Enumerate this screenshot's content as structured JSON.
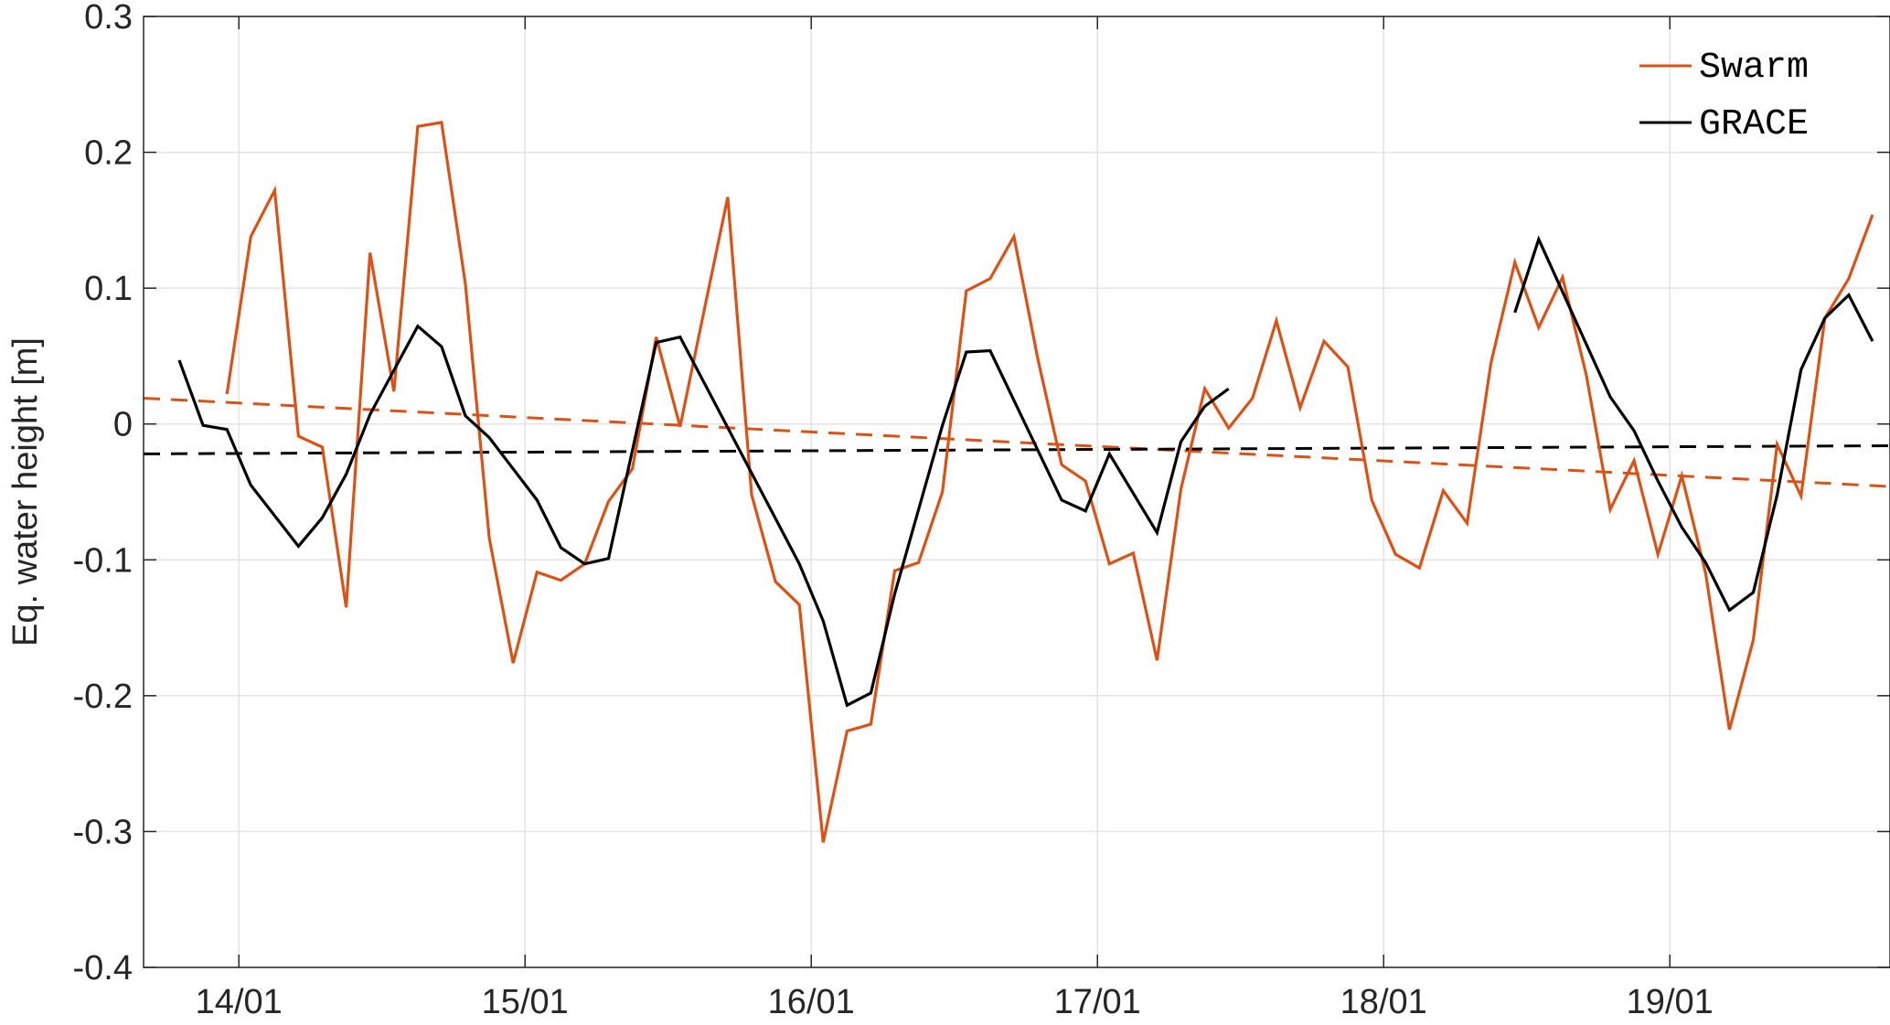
{
  "chart_data": {
    "type": "line",
    "title": "",
    "xlabel": "",
    "ylabel": "Eq. water height [m]",
    "ylim": [
      -0.4,
      0.3
    ],
    "xlim": [
      "2013-09",
      "2019-10"
    ],
    "yticks": [
      "0.3",
      "0.2",
      "0.1",
      "0",
      "-0.1",
      "-0.2",
      "-0.3",
      "-0.4"
    ],
    "ytick_values": [
      0.3,
      0.2,
      0.1,
      0,
      -0.1,
      -0.2,
      -0.3,
      -0.4
    ],
    "xticks": [
      "14/01",
      "15/01",
      "16/01",
      "17/01",
      "18/01",
      "19/01"
    ],
    "xtick_dates": [
      "2014-01",
      "2015-01",
      "2016-01",
      "2017-01",
      "2018-01",
      "2019-01"
    ],
    "grid": true,
    "legend_position": "top-right",
    "series": [
      {
        "name": "Swarm",
        "color": "#D95319",
        "x": [
          "2013-12",
          "2014-01",
          "2014-02",
          "2014-03",
          "2014-04",
          "2014-05",
          "2014-06",
          "2014-07",
          "2014-08",
          "2014-09",
          "2014-10",
          "2014-11",
          "2014-12",
          "2015-01",
          "2015-02",
          "2015-03",
          "2015-04",
          "2015-05",
          "2015-06",
          "2015-07",
          "2015-08",
          "2015-09",
          "2015-10",
          "2015-11",
          "2015-12",
          "2016-01",
          "2016-02",
          "2016-03",
          "2016-04",
          "2016-05",
          "2016-06",
          "2016-07",
          "2016-08",
          "2016-09",
          "2016-10",
          "2016-11",
          "2016-12",
          "2017-01",
          "2017-02",
          "2017-03",
          "2017-04",
          "2017-05",
          "2017-06",
          "2017-07",
          "2017-08",
          "2017-09",
          "2017-10",
          "2017-11",
          "2017-12",
          "2018-01",
          "2018-02",
          "2018-03",
          "2018-04",
          "2018-05",
          "2018-06",
          "2018-07",
          "2018-08",
          "2018-09",
          "2018-10",
          "2018-11",
          "2018-12",
          "2019-01",
          "2019-02",
          "2019-03",
          "2019-04",
          "2019-05",
          "2019-06",
          "2019-07",
          "2019-08",
          "2019-09"
        ],
        "y": [
          0.022,
          0.138,
          0.172,
          -0.009,
          -0.017,
          -0.135,
          0.126,
          0.024,
          0.219,
          0.222,
          0.103,
          -0.084,
          -0.176,
          -0.109,
          -0.115,
          -0.103,
          -0.057,
          -0.033,
          0.064,
          -0.002,
          0.083,
          0.167,
          -0.052,
          -0.116,
          -0.133,
          -0.308,
          -0.226,
          -0.221,
          -0.108,
          -0.102,
          -0.05,
          0.098,
          0.107,
          0.138,
          0.048,
          -0.03,
          -0.042,
          -0.103,
          -0.095,
          -0.174,
          -0.048,
          0.026,
          -0.003,
          0.019,
          0.076,
          0.012,
          0.061,
          0.042,
          -0.056,
          -0.096,
          -0.106,
          -0.049,
          -0.073,
          0.045,
          0.119,
          0.071,
          0.108,
          0.036,
          -0.063,
          -0.027,
          -0.096,
          -0.038,
          -0.11,
          -0.225,
          -0.159,
          -0.015,
          -0.053,
          0.078,
          0.107,
          0.154
        ],
        "trend": {
          "x": [
            "2013-09",
            "2019-10"
          ],
          "y": [
            0.019,
            -0.046
          ]
        }
      },
      {
        "name": "GRACE",
        "color": "#000000",
        "x": [
          "2013-10",
          "2013-11",
          "2013-12",
          "2014-01",
          "2014-03",
          "2014-04",
          "2014-05",
          "2014-06",
          "2014-08",
          "2014-09",
          "2014-10",
          "2014-11",
          "2015-01",
          "2015-02",
          "2015-03",
          "2015-04",
          "2015-06",
          "2015-07",
          "2015-12",
          "2016-01",
          "2016-02",
          "2016-03",
          "2016-04",
          "2016-06",
          "2016-07",
          "2016-08",
          "2016-11",
          "2016-12",
          "2017-01",
          "2017-03",
          "2017-04",
          "2017-05",
          "2017-06",
          null,
          "2018-06",
          "2018-07",
          "2018-10",
          "2018-11",
          "2018-12",
          "2019-01",
          "2019-02",
          "2019-03",
          "2019-04",
          "2019-05",
          "2019-06",
          "2019-07",
          "2019-08",
          "2019-09"
        ],
        "y": [
          0.047,
          -0.001,
          -0.004,
          -0.045,
          -0.09,
          -0.069,
          -0.037,
          0.007,
          0.072,
          0.057,
          0.006,
          -0.01,
          -0.056,
          -0.091,
          -0.103,
          -0.099,
          0.06,
          0.064,
          -0.103,
          -0.145,
          -0.207,
          -0.198,
          -0.125,
          -0.001,
          0.053,
          0.054,
          -0.056,
          -0.064,
          -0.022,
          -0.08,
          -0.013,
          0.013,
          0.026,
          null,
          0.082,
          0.136,
          0.02,
          -0.005,
          -0.042,
          -0.076,
          -0.102,
          -0.137,
          -0.124,
          -0.052,
          0.04,
          0.078,
          0.095,
          0.061
        ],
        "trend": {
          "x": [
            "2013-09",
            "2019-10"
          ],
          "y": [
            -0.022,
            -0.016
          ]
        }
      }
    ]
  }
}
